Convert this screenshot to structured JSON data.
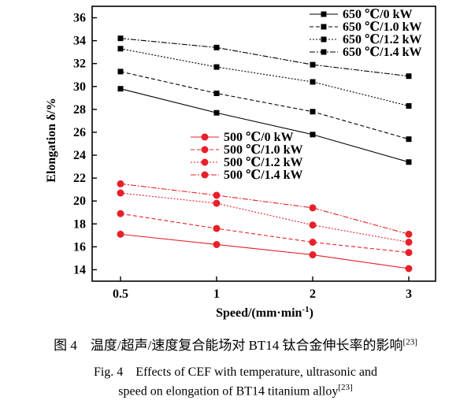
{
  "chart_data": {
    "type": "line",
    "x_label": "Speed/(mm·min",
    "x_label_sup": "-1",
    "x_label_close": ")",
    "y_label": "Elongation δ/%",
    "categories": [
      "0.5",
      "1",
      "2",
      "3"
    ],
    "ylim": [
      13,
      37
    ],
    "y_ticks": [
      "14",
      "16",
      "18",
      "20",
      "22",
      "24",
      "26",
      "28",
      "30",
      "32",
      "34",
      "36"
    ],
    "grid": false,
    "series": [
      {
        "name": "650 ℃/0 kW",
        "color": "#000000",
        "marker": "square",
        "dash": "",
        "values": [
          29.8,
          27.7,
          25.8,
          23.4
        ]
      },
      {
        "name": "650 ℃/1.0 kW",
        "color": "#000000",
        "marker": "square",
        "dash": "5,3",
        "values": [
          31.3,
          29.4,
          27.8,
          25.4
        ]
      },
      {
        "name": "650 ℃/1.2 kW",
        "color": "#000000",
        "marker": "square",
        "dash": "2,2",
        "values": [
          33.3,
          31.7,
          30.4,
          28.3
        ]
      },
      {
        "name": "650 ℃/1.4 kW",
        "color": "#000000",
        "marker": "square",
        "dash": "7,2,2,2",
        "values": [
          34.2,
          33.4,
          31.9,
          30.9
        ]
      },
      {
        "name": "500 ℃/0 kW",
        "color": "#e8202a",
        "marker": "circle",
        "dash": "",
        "values": [
          17.1,
          16.2,
          15.3,
          14.1
        ]
      },
      {
        "name": "500 ℃/1.0 kW",
        "color": "#e8202a",
        "marker": "circle",
        "dash": "5,3",
        "values": [
          18.9,
          17.6,
          16.4,
          15.5
        ]
      },
      {
        "name": "500 ℃/1.2 kW",
        "color": "#e8202a",
        "marker": "circle",
        "dash": "2,2",
        "values": [
          20.7,
          19.8,
          17.9,
          16.4
        ]
      },
      {
        "name": "500 ℃/1.4 kW",
        "color": "#e8202a",
        "marker": "circle",
        "dash": "7,2,2,2",
        "values": [
          21.5,
          20.5,
          19.4,
          17.1
        ]
      }
    ]
  },
  "caption": {
    "cn": "图 4　温度/超声/速度复合能场对 BT14 钛合金伸长率的影响",
    "cn_ref": "[23]",
    "en_line1": "Fig. 4　Effects of CEF with temperature, ultrasonic and",
    "en_line2": "speed on elongation of BT14 titanium alloy",
    "en_ref": "[23]"
  }
}
